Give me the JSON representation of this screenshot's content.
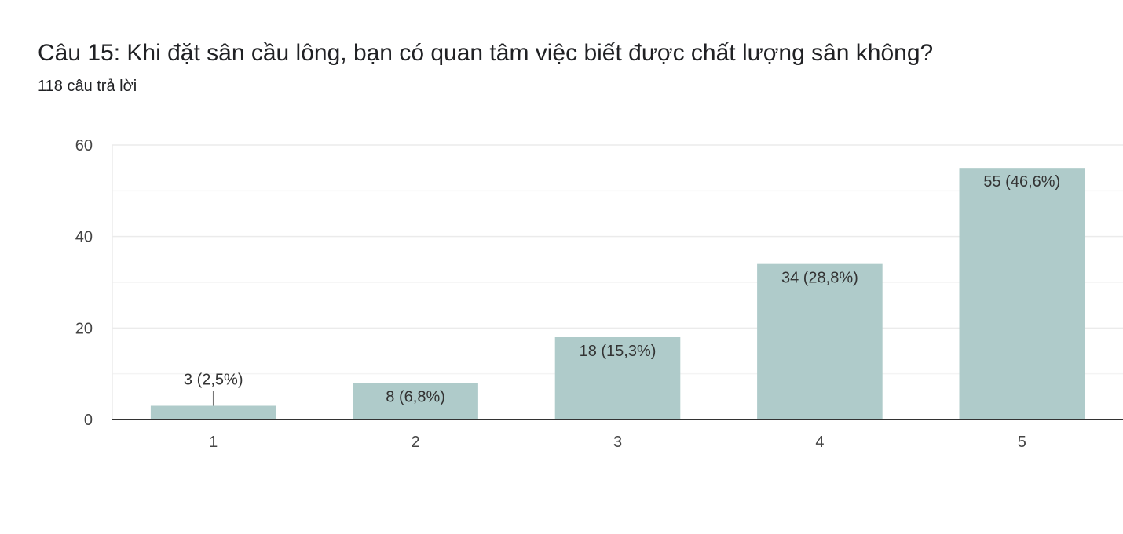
{
  "header": {
    "title": "Câu 15: Khi đặt sân cầu lông, bạn có quan tâm việc biết được chất lượng sân không?",
    "subtitle": "118 câu trả lời"
  },
  "chart_data": {
    "type": "bar",
    "title": "Câu 15: Khi đặt sân cầu lông, bạn có quan tâm việc biết được chất lượng sân không?",
    "categories": [
      "1",
      "2",
      "3",
      "4",
      "5"
    ],
    "values": [
      3,
      8,
      18,
      34,
      55
    ],
    "data_labels": [
      "3 (2,5%)",
      "8 (6,8%)",
      "18 (15,3%)",
      "34 (28,8%)",
      "55 (46,6%)"
    ],
    "y_ticks": [
      "0",
      "20",
      "40",
      "60"
    ],
    "ylim": [
      0,
      60
    ],
    "xlabel": "",
    "ylabel": "",
    "grid": true,
    "legend": "none",
    "colors": {
      "bar": "#afcbca",
      "grid": "#ebebeb",
      "axis": "#333333"
    }
  }
}
